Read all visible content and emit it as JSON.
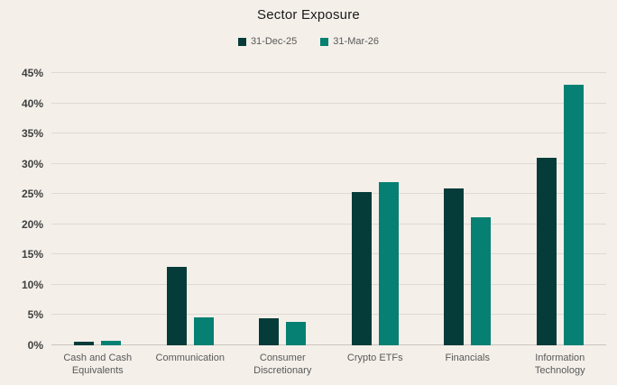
{
  "chart_data": {
    "type": "bar",
    "title": "Sector Exposure",
    "categories": [
      "Cash and Cash Equivalents",
      "Communication",
      "Consumer Discretionary",
      "Crypto ETFs",
      "Financials",
      "Information Technology"
    ],
    "series": [
      {
        "name": "31-Dec-25",
        "color": "#053c39",
        "values": [
          0.6,
          13.0,
          4.5,
          25.3,
          26.0,
          31.0
        ]
      },
      {
        "name": "31-Mar-26",
        "color": "#058073",
        "values": [
          0.7,
          4.6,
          3.9,
          27.0,
          21.2,
          43.0
        ]
      }
    ],
    "xlabel": "",
    "ylabel": "",
    "ylim": [
      0,
      45
    ],
    "y_tick_step": 5,
    "y_tick_suffix": "%",
    "grid": true,
    "legend_position": "top-center",
    "colors": {
      "background": "#f4efe9",
      "gridline": "#ded9d3",
      "axis_line": "#c9c4be",
      "y_tick_label": "#404040",
      "x_tick_label": "#595959",
      "legend_text": "#595959",
      "title_text": "#1a1a1a"
    }
  }
}
